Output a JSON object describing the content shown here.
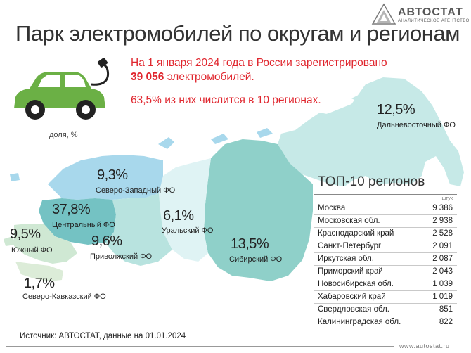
{
  "title": "Парк электромобилей по округам и регионам",
  "logo": {
    "name": "АВТОСТАТ",
    "tagline": "АНАЛИТИЧЕСКОЕ АГЕНТСТВО"
  },
  "intro": {
    "line1": "На 1 января 2024 года в России зарегистрировано",
    "count": "39 056",
    "line2_rest": " электромобилей.",
    "share": "63,5% из них числится в 10 регионах."
  },
  "car_caption": "доля, %",
  "districts": [
    {
      "name": "Дальневосточный ФО",
      "pct": "12,5%"
    },
    {
      "name": "Северо-Западный ФО",
      "pct": "9,3%"
    },
    {
      "name": "Центральный ФО",
      "pct": "37,8%"
    },
    {
      "name": "Уральский ФО",
      "pct": "6,1%"
    },
    {
      "name": "Южный ФО",
      "pct": "9,5%"
    },
    {
      "name": "Приволжский ФО",
      "pct": "9,6%"
    },
    {
      "name": "Сибирский ФО",
      "pct": "13,5%"
    },
    {
      "name": "Северо-Кавказский ФО",
      "pct": "1,7%"
    }
  ],
  "top10": {
    "title": "ТОП-10 регионов",
    "unit": "штук",
    "rows": [
      {
        "region": "Москва",
        "value": "9 386"
      },
      {
        "region": "Московская обл.",
        "value": "2 938"
      },
      {
        "region": "Краснодарский край",
        "value": "2 528"
      },
      {
        "region": "Санкт-Петербург",
        "value": "2 091"
      },
      {
        "region": "Иркутская обл.",
        "value": "2 087"
      },
      {
        "region": "Приморский край",
        "value": "2 043"
      },
      {
        "region": "Новосибирская обл.",
        "value": "1 039"
      },
      {
        "region": "Хабаровский край",
        "value": "1 019"
      },
      {
        "region": "Свердловская обл.",
        "value": "851"
      },
      {
        "region": "Калининградская обл.",
        "value": "822"
      }
    ]
  },
  "source": "Источник: АВТОСТАТ, данные на 01.01.2024",
  "site": "www.autostat.ru",
  "colors": {
    "accent": "#e0262e",
    "car": "#6bb045"
  }
}
